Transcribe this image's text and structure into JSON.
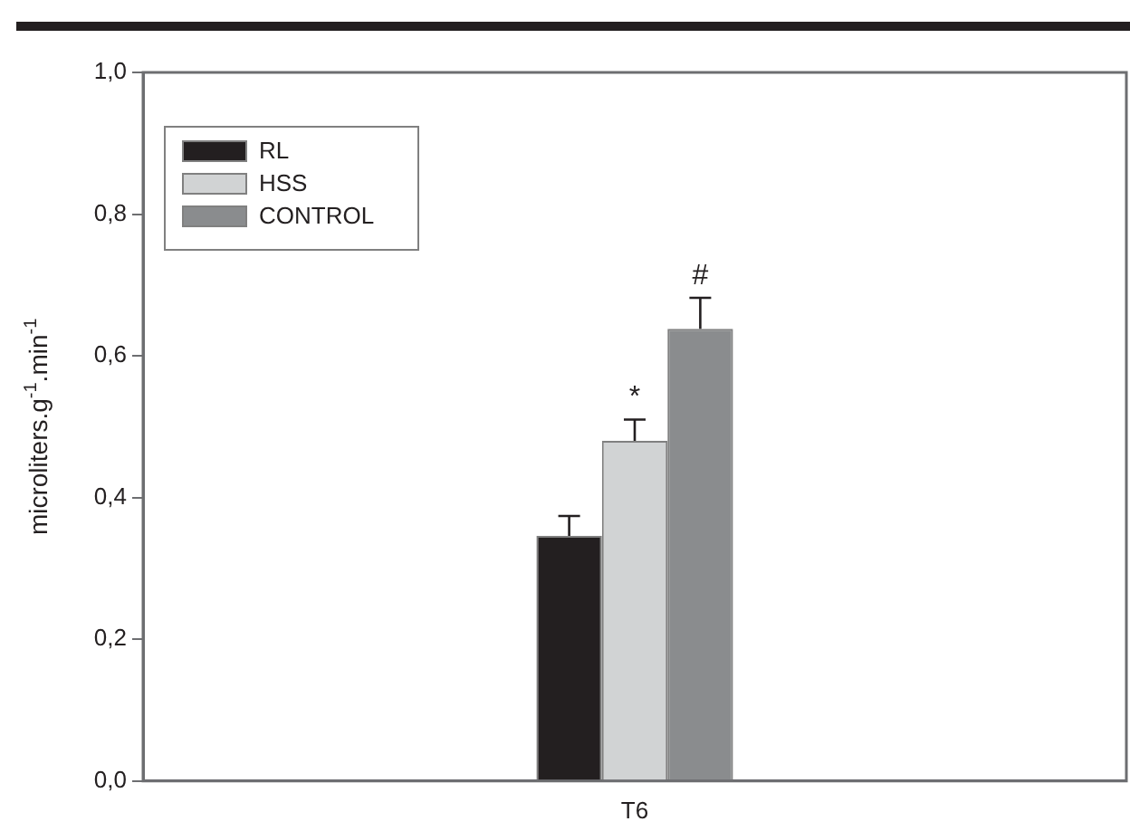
{
  "chart_data": {
    "type": "bar",
    "ylabel": "microliters.g$^{-1}$.min$^{-1}$",
    "categories": [
      "T6"
    ],
    "series": [
      {
        "name": "RL",
        "color": "#231f20",
        "values": [
          0.346
        ],
        "errors": [
          0.028
        ]
      },
      {
        "name": "HSS",
        "color": "#d1d3d4",
        "values": [
          0.48
        ],
        "errors": [
          0.03
        ]
      },
      {
        "name": "CONTROL",
        "color": "#8a8c8e",
        "values": [
          0.638
        ],
        "errors": [
          0.044
        ]
      }
    ],
    "ylim": [
      0,
      1
    ],
    "yticks": [
      {
        "value": 0,
        "label": "0,0"
      },
      {
        "value": 0.2,
        "label": "0,2"
      },
      {
        "value": 0.4,
        "label": "0,4"
      },
      {
        "value": 0.6,
        "label": "0,6"
      },
      {
        "value": 0.8,
        "label": "0,8"
      },
      {
        "value": 1,
        "label": "1,0"
      }
    ],
    "grid": false,
    "legend": "top left",
    "annotations": [
      "*",
      "#"
    ]
  }
}
